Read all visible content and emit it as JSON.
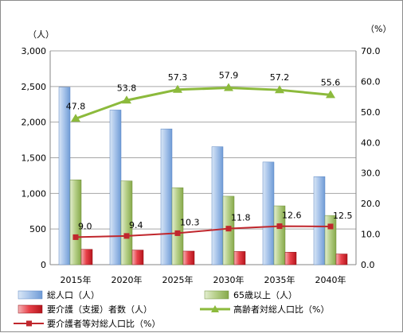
{
  "chart_data": {
    "type": "bar",
    "categories": [
      "2015年",
      "2020年",
      "2025年",
      "2030年",
      "2035年",
      "2040年"
    ],
    "left_axis": {
      "unit": "（人）",
      "ylim": [
        0,
        3000
      ],
      "ticks": [
        "0",
        "500",
        "1,000",
        "1,500",
        "2,000",
        "2,500",
        "3,000"
      ]
    },
    "right_axis": {
      "unit": "（%）",
      "ylim": [
        0,
        70
      ],
      "ticks": [
        "0.0",
        "10.0",
        "20.0",
        "30.0",
        "40.0",
        "50.0",
        "60.0",
        "70.0"
      ]
    },
    "grid": true,
    "legend_position": "bottom",
    "series": [
      {
        "name": "総人口（人）",
        "type": "bar",
        "axis": "left",
        "color": "#8eb4e3",
        "values": [
          2490,
          2170,
          1905,
          1655,
          1440,
          1235
        ]
      },
      {
        "name": "65歳以上（人）",
        "type": "bar",
        "axis": "left",
        "color": "#9bbb59",
        "values": [
          1190,
          1175,
          1080,
          960,
          825,
          690
        ]
      },
      {
        "name": "要介護（支援）者数（人）",
        "type": "bar",
        "axis": "left",
        "color": "#e0202a",
        "values": [
          215,
          205,
          190,
          185,
          175,
          150
        ]
      },
      {
        "name": "高齢者対総人口比（%）",
        "type": "line",
        "axis": "right",
        "color": "#8cba3c",
        "values": [
          47.8,
          53.8,
          57.3,
          57.9,
          57.2,
          55.6
        ],
        "labels": [
          "47.8",
          "53.8",
          "57.3",
          "57.9",
          "57.2",
          "55.6"
        ]
      },
      {
        "name": "要介護者等対総人口比（%）",
        "type": "line",
        "axis": "right",
        "color": "#c0272d",
        "values": [
          9.0,
          9.4,
          10.3,
          11.8,
          12.6,
          12.5
        ],
        "labels": [
          "9.0",
          "9.4",
          "10.3",
          "11.8",
          "12.6",
          "12.5"
        ]
      }
    ]
  }
}
